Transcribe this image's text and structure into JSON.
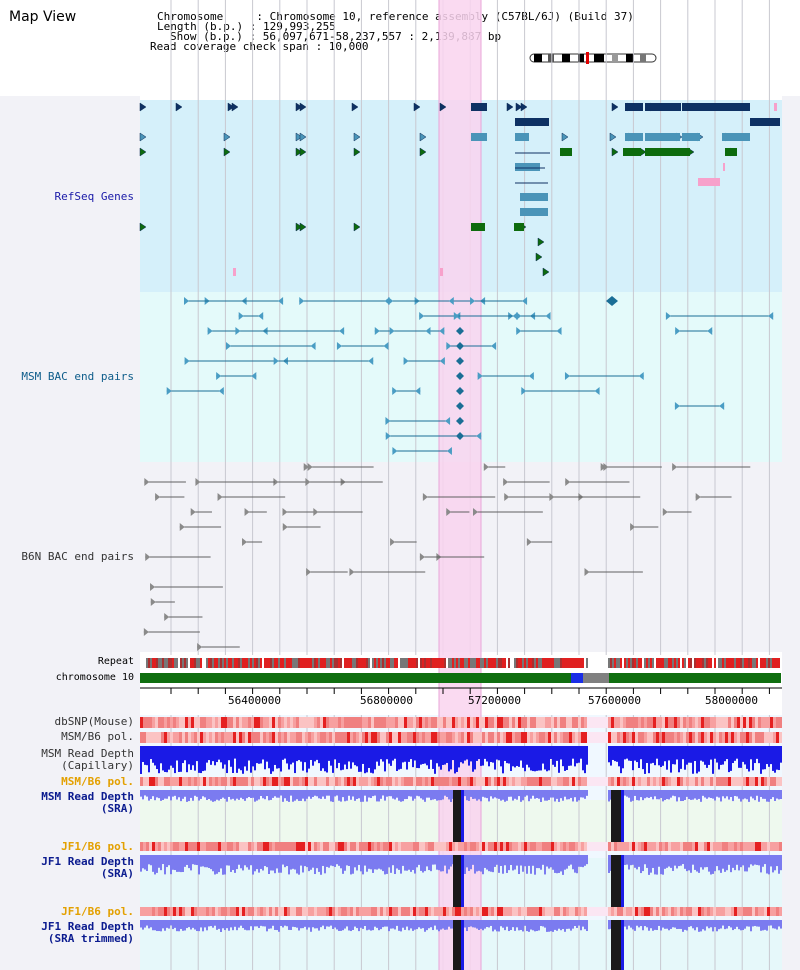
{
  "view_title": "Map View",
  "info": {
    "chromosome_line": "Chromosome     : Chromosome 10, reference assembly (C57BL/6J) (Build 37)",
    "length_line": "Length (b.p.) : 129,993,255",
    "show_line": "Show (b.p.) : 56,097,671-58,237,557 : 2,139,887 bp",
    "coverage_line": "Read coverage check span : 10,000"
  },
  "tracks": {
    "refseq": "RefSeq Genes",
    "msm_bac": "MSM BAC end pairs",
    "b6n_bac": "B6N BAC end pairs",
    "repeat": "Repeat",
    "chromosome": "chromosome 10",
    "dbsnp": "dbSNP(Mouse)",
    "msm_b6_pol_1": "MSM/B6 pol.",
    "msm_read_depth_cap_1": "MSM Read Depth",
    "msm_read_depth_cap_2": "(Capillary)",
    "msm_b6_pol_2": "MSM/B6 pol.",
    "msm_read_depth_sra_1": "MSM Read Depth",
    "msm_read_depth_sra_2": "(SRA)",
    "jf1_b6_pol_1": "JF1/B6 pol.",
    "jf1_read_depth_1": "JF1 Read Depth",
    "jf1_read_depth_2": "(SRA)",
    "jf1_b6_pol_2": "JF1/B6 pol.",
    "jf1_read_depth_trim_1": "JF1 Read Depth",
    "jf1_read_depth_trim_2": "(SRA trimmed)"
  },
  "axis_ticks": [
    "56400000",
    "56800000",
    "57200000",
    "57600000",
    "58000000"
  ],
  "colors": {
    "highlight": "#f9d3ef",
    "refseq_bg": "#d5f0fa",
    "msm_bg": "#e4fafa",
    "gene_dark": "#0e3163",
    "gene_mid": "#4a94b8",
    "gene_green": "#0d6b0d",
    "gene_pink": "#f7a1cb",
    "bac_teal": "#1a6e96",
    "bac_gray": "#606060",
    "chrom_green": "#0f6e0f",
    "depth_blue": "#1a1ae6",
    "depth_light_blue": "#7b7bf0",
    "pol_red": "#e53030"
  }
}
